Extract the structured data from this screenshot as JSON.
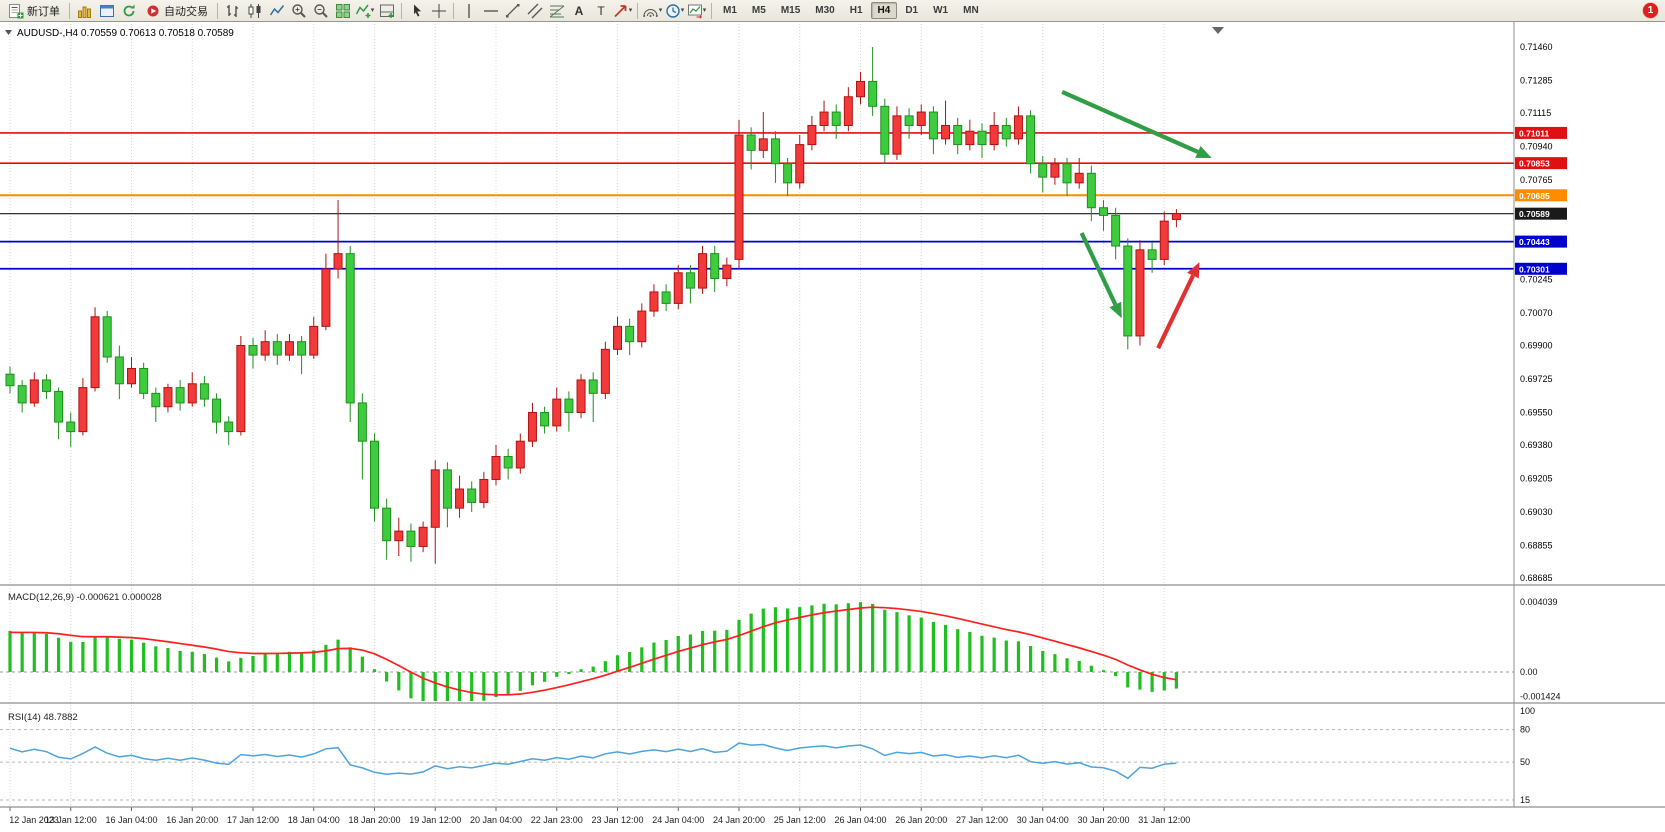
{
  "toolbar": {
    "items": [
      {
        "kind": "button",
        "name": "new-order",
        "icon": "new-order",
        "label": "新订单"
      },
      {
        "kind": "sep"
      },
      {
        "kind": "icon",
        "name": "market-watch",
        "icon": "gold-bars"
      },
      {
        "kind": "icon",
        "name": "data-window",
        "icon": "blue-window"
      },
      {
        "kind": "icon",
        "name": "refresh",
        "icon": "green-refresh"
      },
      {
        "kind": "button",
        "name": "auto-trading",
        "icon": "red-dot",
        "label": "自动交易"
      },
      {
        "kind": "sep"
      },
      {
        "kind": "icon",
        "name": "bar-chart-mode",
        "icon": "ohlc-bars"
      },
      {
        "kind": "icon",
        "name": "candlestick-mode",
        "icon": "candles"
      },
      {
        "kind": "icon",
        "name": "line-chart-mode",
        "icon": "line-chart"
      },
      {
        "kind": "icon",
        "name": "zoom-in",
        "icon": "zoom-in"
      },
      {
        "kind": "icon",
        "name": "zoom-out",
        "icon": "zoom-out"
      },
      {
        "kind": "icon",
        "name": "tile-windows",
        "icon": "green-grid"
      },
      {
        "kind": "icon",
        "name": "indicators",
        "icon": "indicator-add",
        "caret": true
      },
      {
        "kind": "icon",
        "name": "indicator-windows",
        "icon": "window-add"
      },
      {
        "kind": "sep"
      },
      {
        "kind": "icon",
        "name": "cursor-tool",
        "icon": "cursor"
      },
      {
        "kind": "icon",
        "name": "crosshair-tool",
        "icon": "crosshair"
      },
      {
        "kind": "sep"
      },
      {
        "kind": "icon",
        "name": "vertical-line-tool",
        "icon": "vline"
      },
      {
        "kind": "icon",
        "name": "horizontal-line-tool",
        "icon": "hline"
      },
      {
        "kind": "icon",
        "name": "trendline-tool",
        "icon": "tline"
      },
      {
        "kind": "icon",
        "name": "channel-tool",
        "icon": "channel"
      },
      {
        "kind": "icon",
        "name": "fibonacci-tool",
        "icon": "fibo"
      },
      {
        "kind": "icon",
        "name": "text-tool",
        "icon": "text-a"
      },
      {
        "kind": "icon",
        "name": "label-tool",
        "icon": "text-t"
      },
      {
        "kind": "icon",
        "name": "arrows-tool",
        "icon": "arrow-shape",
        "caret": true
      },
      {
        "kind": "sep"
      },
      {
        "kind": "icon",
        "name": "cycle-lines-tool",
        "icon": "cycles",
        "caret": true
      },
      {
        "kind": "icon",
        "name": "periods-menu",
        "icon": "clock",
        "caret": true
      },
      {
        "kind": "icon",
        "name": "template-menu",
        "icon": "shift",
        "caret": true
      },
      {
        "kind": "sep"
      }
    ],
    "timeframes": [
      "M1",
      "M5",
      "M15",
      "M30",
      "H1",
      "H4",
      "D1",
      "W1",
      "MN"
    ],
    "active_timeframe": "H4",
    "notification_badge": "1"
  },
  "chart_data": {
    "type": "candlestick",
    "symbol_period": "AUDUSD-,H4",
    "ohlc_readout": {
      "open": "0.70559",
      "high": "0.70613",
      "low": "0.70518",
      "close": "0.70589"
    },
    "colors": {
      "up_fill": "#f23a3a",
      "up_border": "#b01212",
      "down_fill": "#3ecb3e",
      "down_border": "#1d8f1d",
      "grid": "#d6d6d6"
    },
    "price_axis": {
      "max": 0.7146,
      "min": 0.68685,
      "labels": [
        "0.71460",
        "0.71285",
        "0.71115",
        "0.70940",
        "0.70765",
        "0.70245",
        "0.70070",
        "0.69900",
        "0.69725",
        "0.69550",
        "0.69380",
        "0.69205",
        "0.69030",
        "0.68855",
        "0.68685"
      ]
    },
    "time_labels": [
      "12 Jan 2023",
      "13 Jan 12:00",
      "16 Jan 04:00",
      "16 Jan 20:00",
      "17 Jan 12:00",
      "18 Jan 04:00",
      "18 Jan 20:00",
      "19 Jan 12:00",
      "20 Jan 04:00",
      "22 Jan 23:00",
      "23 Jan 12:00",
      "24 Jan 04:00",
      "24 Jan 20:00",
      "25 Jan 12:00",
      "26 Jan 04:00",
      "26 Jan 20:00",
      "27 Jan 12:00",
      "30 Jan 04:00",
      "30 Jan 20:00",
      "31 Jan 12:00"
    ],
    "candles": [
      [
        0.6975,
        0.6979,
        0.6965,
        0.6969
      ],
      [
        0.6969,
        0.6972,
        0.6955,
        0.696
      ],
      [
        0.696,
        0.6976,
        0.6958,
        0.6972
      ],
      [
        0.6972,
        0.6975,
        0.6962,
        0.6966
      ],
      [
        0.6966,
        0.6968,
        0.6941,
        0.695
      ],
      [
        0.695,
        0.6955,
        0.6937,
        0.6945
      ],
      [
        0.6945,
        0.6973,
        0.6943,
        0.6968
      ],
      [
        0.6968,
        0.701,
        0.6966,
        0.7005
      ],
      [
        0.7005,
        0.7008,
        0.6981,
        0.6984
      ],
      [
        0.6984,
        0.699,
        0.6962,
        0.697
      ],
      [
        0.697,
        0.6984,
        0.6968,
        0.6978
      ],
      [
        0.6978,
        0.6981,
        0.6962,
        0.6965
      ],
      [
        0.6965,
        0.6968,
        0.695,
        0.6958
      ],
      [
        0.6958,
        0.697,
        0.6955,
        0.6968
      ],
      [
        0.6968,
        0.6972,
        0.6956,
        0.696
      ],
      [
        0.696,
        0.6976,
        0.6958,
        0.697
      ],
      [
        0.697,
        0.6974,
        0.6958,
        0.6962
      ],
      [
        0.6962,
        0.6965,
        0.6944,
        0.695
      ],
      [
        0.695,
        0.6953,
        0.6938,
        0.6945
      ],
      [
        0.6945,
        0.6995,
        0.6943,
        0.699
      ],
      [
        0.699,
        0.6994,
        0.6978,
        0.6985
      ],
      [
        0.6985,
        0.6998,
        0.6982,
        0.6992
      ],
      [
        0.6992,
        0.6996,
        0.698,
        0.6985
      ],
      [
        0.6985,
        0.6996,
        0.6982,
        0.6992
      ],
      [
        0.6992,
        0.6995,
        0.6975,
        0.6985
      ],
      [
        0.6985,
        0.7005,
        0.6983,
        0.7
      ],
      [
        0.7,
        0.7038,
        0.6998,
        0.703
      ],
      [
        0.703,
        0.7066,
        0.7025,
        0.7038
      ],
      [
        0.7038,
        0.7042,
        0.695,
        0.696
      ],
      [
        0.696,
        0.6965,
        0.692,
        0.694
      ],
      [
        0.694,
        0.6944,
        0.6898,
        0.6905
      ],
      [
        0.6905,
        0.691,
        0.6878,
        0.6888
      ],
      [
        0.6888,
        0.69,
        0.688,
        0.6893
      ],
      [
        0.6893,
        0.6897,
        0.6877,
        0.6885
      ],
      [
        0.6885,
        0.6898,
        0.6882,
        0.6895
      ],
      [
        0.6895,
        0.693,
        0.6876,
        0.6925
      ],
      [
        0.6925,
        0.6929,
        0.6895,
        0.6905
      ],
      [
        0.6905,
        0.6922,
        0.69,
        0.6915
      ],
      [
        0.6915,
        0.6919,
        0.6903,
        0.6908
      ],
      [
        0.6908,
        0.6924,
        0.6905,
        0.692
      ],
      [
        0.692,
        0.6938,
        0.6917,
        0.6932
      ],
      [
        0.6932,
        0.6936,
        0.692,
        0.6926
      ],
      [
        0.6926,
        0.6944,
        0.6923,
        0.694
      ],
      [
        0.694,
        0.696,
        0.6937,
        0.6955
      ],
      [
        0.6955,
        0.6958,
        0.6944,
        0.6948
      ],
      [
        0.6948,
        0.6968,
        0.6945,
        0.6962
      ],
      [
        0.6962,
        0.6966,
        0.6945,
        0.6955
      ],
      [
        0.6955,
        0.6975,
        0.6952,
        0.6972
      ],
      [
        0.6972,
        0.6976,
        0.695,
        0.6965
      ],
      [
        0.6965,
        0.6992,
        0.6962,
        0.6988
      ],
      [
        0.6988,
        0.7005,
        0.6985,
        0.7
      ],
      [
        0.7,
        0.7004,
        0.6985,
        0.6992
      ],
      [
        0.6992,
        0.7012,
        0.6989,
        0.7008
      ],
      [
        0.7008,
        0.7022,
        0.7005,
        0.7018
      ],
      [
        0.7018,
        0.7022,
        0.7008,
        0.7012
      ],
      [
        0.7012,
        0.7032,
        0.7009,
        0.7028
      ],
      [
        0.7028,
        0.7032,
        0.7012,
        0.702
      ],
      [
        0.702,
        0.7042,
        0.7017,
        0.7038
      ],
      [
        0.7038,
        0.7042,
        0.7018,
        0.7025
      ],
      [
        0.7025,
        0.7036,
        0.7021,
        0.7032
      ],
      [
        0.7035,
        0.7108,
        0.703,
        0.71
      ],
      [
        0.71,
        0.7104,
        0.7082,
        0.7092
      ],
      [
        0.7092,
        0.7112,
        0.7088,
        0.7098
      ],
      [
        0.7098,
        0.7102,
        0.7075,
        0.7085
      ],
      [
        0.7085,
        0.7088,
        0.7068,
        0.7075
      ],
      [
        0.7075,
        0.71,
        0.7072,
        0.7095
      ],
      [
        0.7095,
        0.711,
        0.7092,
        0.7105
      ],
      [
        0.7105,
        0.7118,
        0.7102,
        0.7112
      ],
      [
        0.7112,
        0.7116,
        0.7098,
        0.7105
      ],
      [
        0.7105,
        0.7125,
        0.7102,
        0.712
      ],
      [
        0.712,
        0.7133,
        0.7116,
        0.7128
      ],
      [
        0.7128,
        0.7146,
        0.711,
        0.7115
      ],
      [
        0.7115,
        0.7119,
        0.7085,
        0.709
      ],
      [
        0.709,
        0.7115,
        0.7087,
        0.711
      ],
      [
        0.711,
        0.7114,
        0.7098,
        0.7105
      ],
      [
        0.7105,
        0.7116,
        0.71,
        0.7112
      ],
      [
        0.7112,
        0.7115,
        0.709,
        0.7098
      ],
      [
        0.7098,
        0.7118,
        0.7095,
        0.7105
      ],
      [
        0.7105,
        0.7109,
        0.709,
        0.7095
      ],
      [
        0.7095,
        0.7108,
        0.7092,
        0.7102
      ],
      [
        0.7102,
        0.7106,
        0.7088,
        0.7095
      ],
      [
        0.7095,
        0.7112,
        0.7092,
        0.7105
      ],
      [
        0.7105,
        0.7109,
        0.7094,
        0.7098
      ],
      [
        0.7098,
        0.7115,
        0.7095,
        0.711
      ],
      [
        0.711,
        0.7113,
        0.708,
        0.7085
      ],
      [
        0.7085,
        0.7089,
        0.707,
        0.7078
      ],
      [
        0.7078,
        0.7088,
        0.7074,
        0.7085
      ],
      [
        0.7085,
        0.7088,
        0.7068,
        0.7075
      ],
      [
        0.7075,
        0.7088,
        0.7072,
        0.708
      ],
      [
        0.708,
        0.7084,
        0.7055,
        0.7062
      ],
      [
        0.7062,
        0.7066,
        0.705,
        0.7058
      ],
      [
        0.7058,
        0.7062,
        0.7035,
        0.7042
      ],
      [
        0.7042,
        0.7046,
        0.6988,
        0.6995
      ],
      [
        0.6995,
        0.7045,
        0.699,
        0.704
      ],
      [
        0.704,
        0.7044,
        0.7028,
        0.7035
      ],
      [
        0.7035,
        0.706,
        0.7032,
        0.7055
      ],
      [
        0.70559,
        0.70613,
        0.70518,
        0.70589
      ]
    ],
    "lines": [
      {
        "price": 0.71011,
        "label": "0.71011",
        "color": "#e01010",
        "width": 1.6
      },
      {
        "price": 0.70853,
        "label": "0.70853",
        "color": "#e01010",
        "width": 1.6
      },
      {
        "price": 0.70685,
        "label": "0.70685",
        "color": "#ff8c00",
        "width": 2
      },
      {
        "price": 0.70589,
        "label": "0.70589",
        "color": "#1a1a1a",
        "width": 1.2
      },
      {
        "price": 0.70443,
        "label": "0.70443",
        "color": "#0000cd",
        "width": 1.8
      },
      {
        "price": 0.70301,
        "label": "0.70301",
        "color": "#0000cd",
        "width": 1.8
      }
    ],
    "arrows": [
      {
        "from": [
          86.6,
          0.71225
        ],
        "to": [
          98.9,
          0.7088
        ],
        "color": "#2f9e44"
      },
      {
        "from": [
          88.2,
          0.70488
        ],
        "to": [
          91.5,
          0.70043
        ],
        "color": "#2f9e44"
      },
      {
        "from": [
          94.5,
          0.69886
        ],
        "to": [
          97.9,
          0.70336
        ],
        "color": "#e03131"
      }
    ],
    "macd": {
      "label": "MACD(12,26,9)",
      "values_text": "-0.000621 0.000028",
      "params": [
        12,
        26,
        9
      ],
      "axis_labels": [
        "0.004039",
        "0.00",
        "-0.001424"
      ],
      "axis_values": [
        0.004039,
        0,
        -0.001424
      ],
      "histogram_color": "#1fbf1f",
      "signal_color": "#ff1f1f"
    },
    "rsi": {
      "label": "RSI(14)",
      "value_text": "48.7882",
      "period": 14,
      "line_color": "#4da3dd",
      "axis_labels": [
        "100",
        "80",
        "50",
        "15"
      ],
      "axis_values": [
        100,
        80,
        50,
        15
      ],
      "levels": [
        80,
        50,
        15
      ]
    }
  }
}
